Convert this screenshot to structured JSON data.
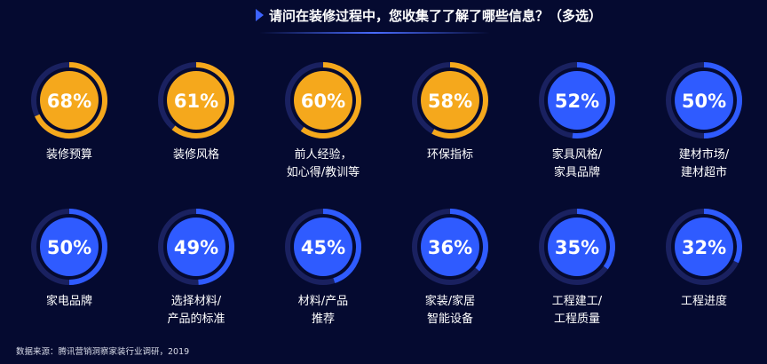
{
  "chart_data": {
    "type": "radial-progress",
    "title": "请问在装修过程中，您收集了了解了哪些信息？（多选）",
    "unit": "%",
    "items": [
      {
        "value": 68,
        "display": "68%",
        "label_lines": [
          "装修预算"
        ],
        "color": "#f5a81c"
      },
      {
        "value": 61,
        "display": "61%",
        "label_lines": [
          "装修风格"
        ],
        "color": "#f5a81c"
      },
      {
        "value": 60,
        "display": "60%",
        "label_lines": [
          "前人经验，",
          "如心得/教训等"
        ],
        "color": "#f5a81c"
      },
      {
        "value": 58,
        "display": "58%",
        "label_lines": [
          "环保指标"
        ],
        "color": "#f5a81c"
      },
      {
        "value": 52,
        "display": "52%",
        "label_lines": [
          "家具风格/",
          "家具品牌"
        ],
        "color": "#2f5bff"
      },
      {
        "value": 50,
        "display": "50%",
        "label_lines": [
          "建材市场/",
          "建材超市"
        ],
        "color": "#2f5bff"
      },
      {
        "value": 50,
        "display": "50%",
        "label_lines": [
          "家电品牌"
        ],
        "color": "#2f5bff"
      },
      {
        "value": 49,
        "display": "49%",
        "label_lines": [
          "选择材料/",
          "产品的标准"
        ],
        "color": "#2f5bff"
      },
      {
        "value": 45,
        "display": "45%",
        "label_lines": [
          "材料/产品",
          "推荐"
        ],
        "color": "#2f5bff"
      },
      {
        "value": 36,
        "display": "36%",
        "label_lines": [
          "家装/家居",
          "智能设备"
        ],
        "color": "#2f5bff"
      },
      {
        "value": 35,
        "display": "35%",
        "label_lines": [
          "工程建工/",
          "工程质量"
        ],
        "color": "#2f5bff"
      },
      {
        "value": 32,
        "display": "32%",
        "label_lines": [
          "工程进度"
        ],
        "color": "#2f5bff"
      }
    ]
  },
  "footer": {
    "source": "数据来源：腾讯营销洞察家装行业调研，2019"
  },
  "colors": {
    "background": "#050a30",
    "track": "#1a2160",
    "orange": "#f5a81c",
    "blue": "#2f5bff"
  }
}
